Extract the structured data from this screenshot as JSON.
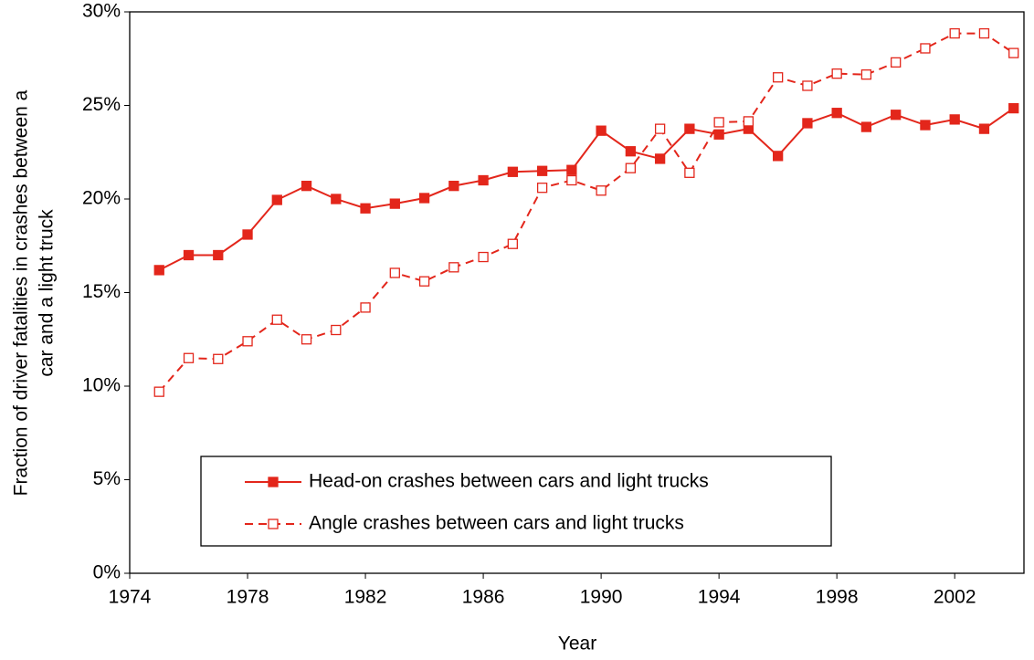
{
  "chart_data": {
    "type": "line",
    "xlabel": "Year",
    "ylabel": [
      "Fraction of driver fatalities in crashes between a",
      "car and a light truck"
    ],
    "x": [
      1975,
      1976,
      1977,
      1978,
      1979,
      1980,
      1981,
      1982,
      1983,
      1984,
      1985,
      1986,
      1987,
      1988,
      1989,
      1990,
      1991,
      1992,
      1993,
      1994,
      1995,
      1996,
      1997,
      1998,
      1999,
      2000,
      2001,
      2002,
      2003,
      2004
    ],
    "series": [
      {
        "name": "Head-on crashes between cars and light trucks",
        "color": "#e3261b",
        "marker": "filled-square",
        "dashed": false,
        "values": [
          16.2,
          17.0,
          17.0,
          18.1,
          19.95,
          20.7,
          20.0,
          19.5,
          19.75,
          20.05,
          20.7,
          21.0,
          21.45,
          21.5,
          21.55,
          23.65,
          22.55,
          22.15,
          23.75,
          23.45,
          23.75,
          22.3,
          24.05,
          24.6,
          23.85,
          24.5,
          23.95,
          24.25,
          23.75,
          24.85
        ]
      },
      {
        "name": "Angle crashes between cars and light trucks",
        "color": "#e3261b",
        "marker": "open-square",
        "dashed": true,
        "values": [
          9.7,
          11.5,
          11.45,
          12.4,
          13.55,
          12.5,
          13.0,
          14.2,
          16.05,
          15.6,
          16.35,
          16.9,
          17.6,
          20.6,
          21.0,
          20.45,
          21.65,
          23.75,
          21.4,
          24.1,
          24.15,
          26.5,
          26.05,
          26.7,
          26.65,
          27.3,
          28.05,
          28.85,
          28.85,
          27.8
        ]
      }
    ],
    "xlim": [
      1974,
      2004.35
    ],
    "xticks": [
      1974,
      1978,
      1982,
      1986,
      1990,
      1994,
      1998,
      2002
    ],
    "ylim": [
      0,
      30
    ],
    "yticks": [
      {
        "value": 0,
        "label": "0%"
      },
      {
        "value": 5,
        "label": "5%"
      },
      {
        "value": 10,
        "label": "10%"
      },
      {
        "value": 15,
        "label": "15%"
      },
      {
        "value": 20,
        "label": "20%"
      },
      {
        "value": 25,
        "label": "25%"
      },
      {
        "value": 30,
        "label": "30%"
      }
    ],
    "grid": false,
    "legend": "bottom"
  }
}
